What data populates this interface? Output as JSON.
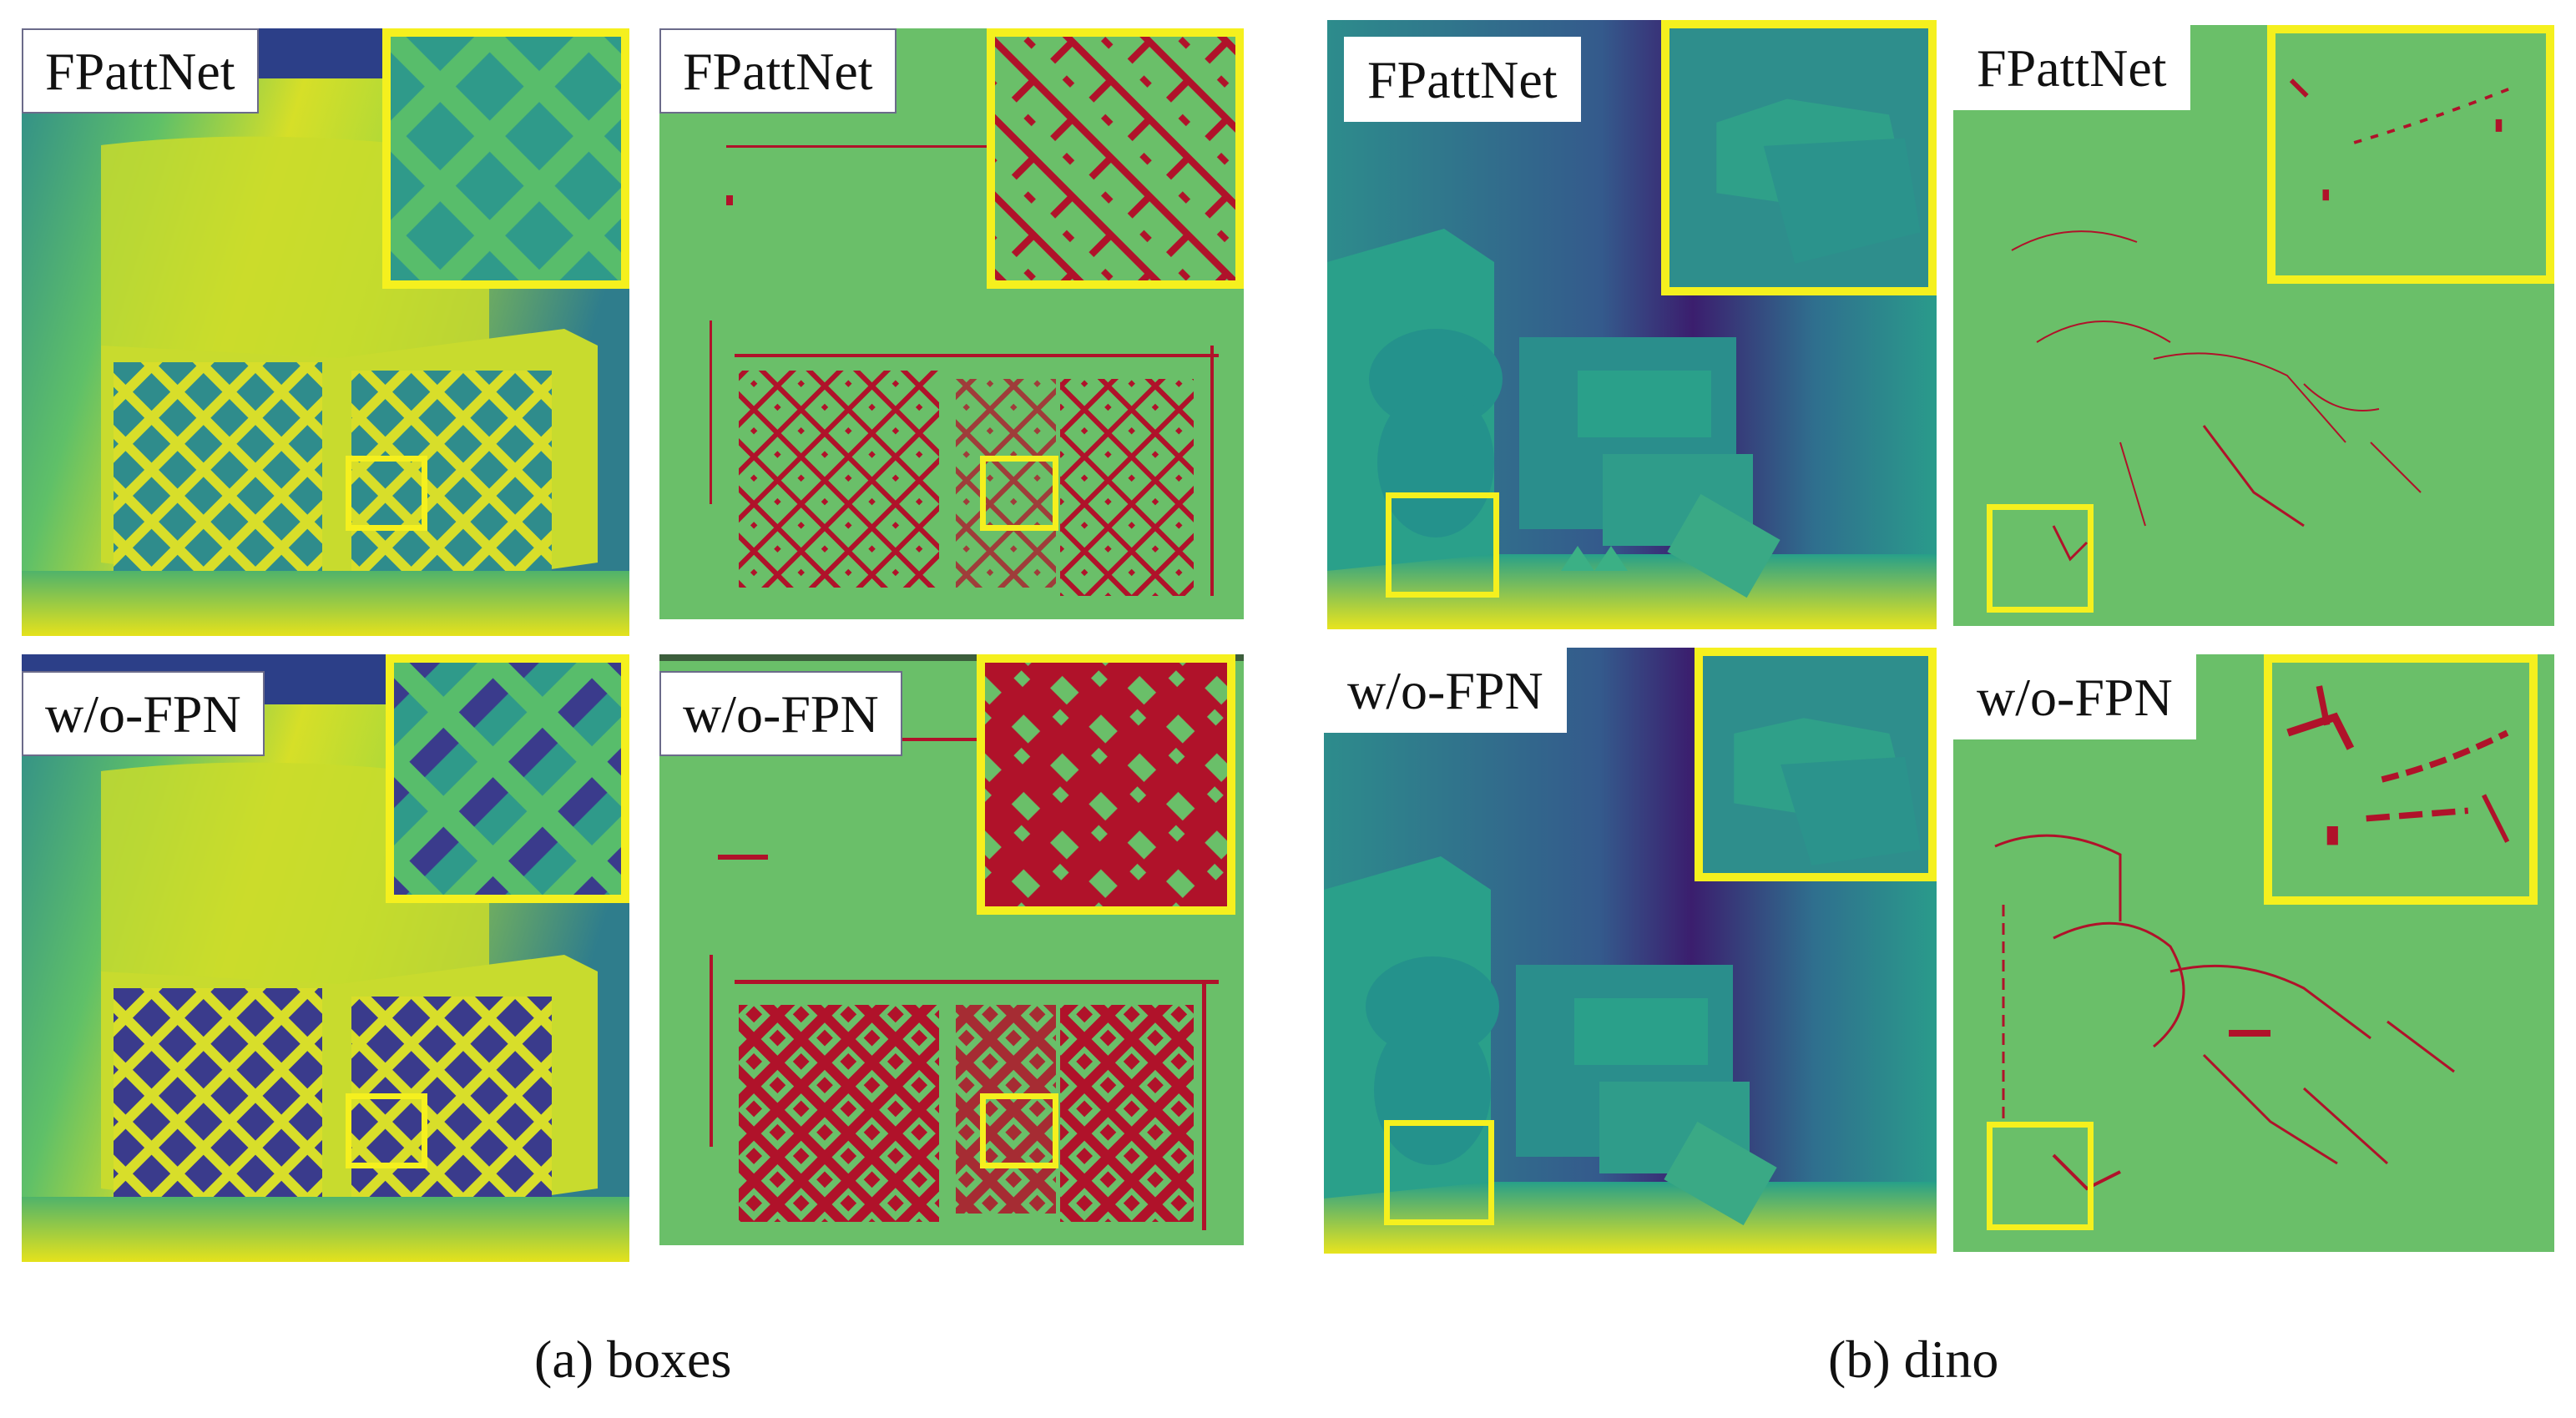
{
  "figure": {
    "labels": {
      "fpattnet": "FPattNet",
      "wofpn": "w/o-FPN"
    },
    "captions": {
      "a": "(a) boxes",
      "b": "(b) dino"
    }
  },
  "colors": {
    "highlight": "#f5f01e",
    "error_bg": "#6abf69",
    "error_mark": "#b0122a",
    "depth_dark": "#3b1e6e",
    "depth_mid": "#2a9b8b",
    "depth_light": "#e6e42a"
  }
}
